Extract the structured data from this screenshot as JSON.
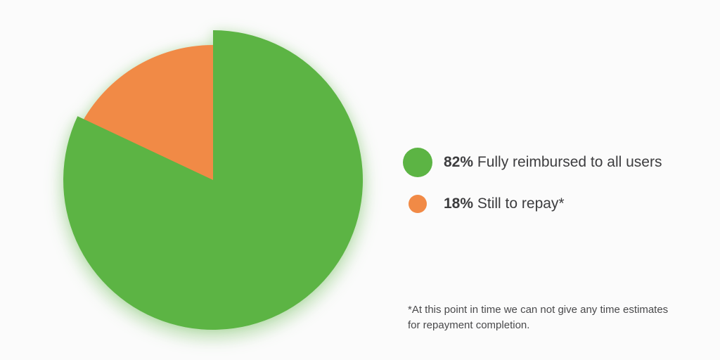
{
  "chart_data": {
    "type": "pie",
    "unit": "percent",
    "total": 100,
    "slices": [
      {
        "label": "Fully reimbursed to all users",
        "value": 82,
        "color": "#5cb444",
        "exploded": true
      },
      {
        "label": "Still to repay*",
        "value": 18,
        "color": "#f18a46",
        "exploded": false
      }
    ],
    "start_angle_deg": 0,
    "direction": "clockwise",
    "legend_position": "right",
    "title": "",
    "footnote": "*At this point in time we can not give any time estimates for repayment completion."
  },
  "legend": {
    "items": [
      {
        "pct": "82%",
        "label": "Fully reimbursed to all users",
        "color": "#5cb444",
        "dot_size": "large"
      },
      {
        "pct": "18%",
        "label": "Still to repay*",
        "color": "#f18a46",
        "dot_size": "small"
      }
    ]
  },
  "footnote": {
    "text": "*At this point in time we can not give any time estimates for repayment completion."
  },
  "colors": {
    "green": "#5cb444",
    "orange": "#f18a46",
    "text": "#3d3d3f",
    "footnote_text": "#49494b",
    "background": "#fbfbfb"
  }
}
